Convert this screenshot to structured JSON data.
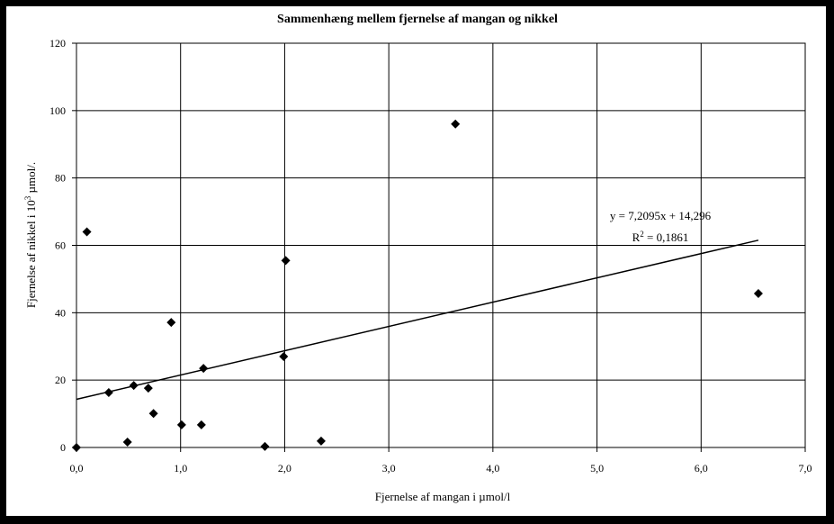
{
  "chart_data": {
    "type": "scatter",
    "title": "Sammenhæng mellem fjernelse af mangan og nikkel",
    "xlabel": "Fjernelse af mangan i µmol/l",
    "ylabel_prefix": "Fjernelse af nikkel i 10",
    "ylabel_sup": "3",
    "ylabel_suffix": " µmol/.",
    "xlim": [
      0,
      7
    ],
    "ylim": [
      0,
      120
    ],
    "x_ticks": [
      0,
      1,
      2,
      3,
      4,
      5,
      6,
      7
    ],
    "x_tick_labels": [
      "0,0",
      "1,0",
      "2,0",
      "3,0",
      "4,0",
      "5,0",
      "6,0",
      "7,0"
    ],
    "y_ticks": [
      0,
      20,
      40,
      60,
      80,
      100,
      120
    ],
    "y_tick_labels": [
      "0",
      "20",
      "40",
      "60",
      "80",
      "100",
      "120"
    ],
    "grid": true,
    "points": [
      {
        "x": 0.0,
        "y": 0
      },
      {
        "x": 0.1,
        "y": 64
      },
      {
        "x": 0.31,
        "y": 16.3
      },
      {
        "x": 0.49,
        "y": 1.6
      },
      {
        "x": 0.55,
        "y": 18.4
      },
      {
        "x": 0.69,
        "y": 17.6
      },
      {
        "x": 0.74,
        "y": 10.1
      },
      {
        "x": 0.91,
        "y": 37.1
      },
      {
        "x": 1.01,
        "y": 6.7
      },
      {
        "x": 1.2,
        "y": 6.7
      },
      {
        "x": 1.22,
        "y": 23.5
      },
      {
        "x": 1.81,
        "y": 0.3
      },
      {
        "x": 1.99,
        "y": 27
      },
      {
        "x": 2.01,
        "y": 55.5
      },
      {
        "x": 2.35,
        "y": 1.9
      },
      {
        "x": 3.64,
        "y": 96
      },
      {
        "x": 6.55,
        "y": 45.7
      }
    ],
    "trendline": {
      "slope": 7.2095,
      "intercept": 14.296,
      "x_range": [
        0,
        6.55
      ]
    },
    "equation_label": "y = 7,2095x + 14,296",
    "r2_prefix": "R",
    "r2_sup": "2",
    "r2_suffix": " = 0,1861"
  }
}
